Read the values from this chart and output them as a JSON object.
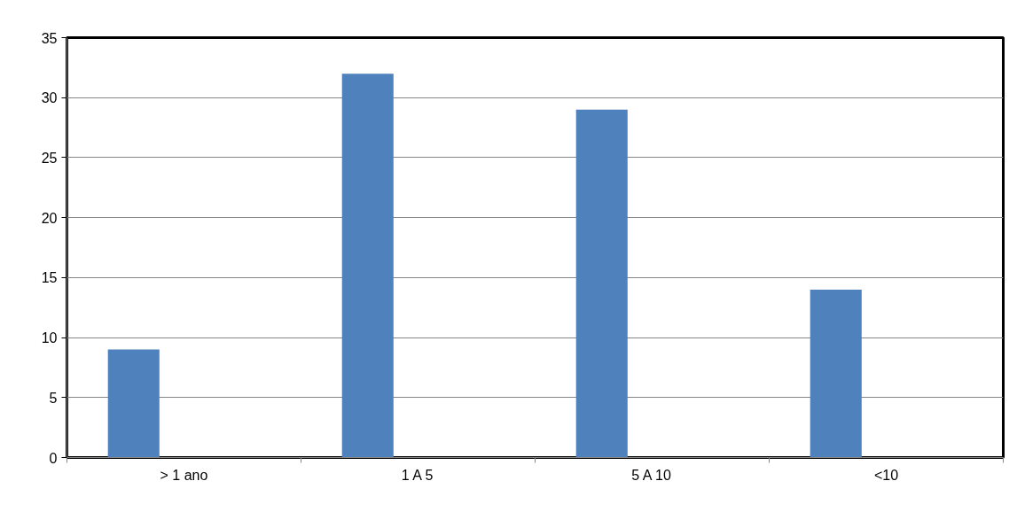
{
  "chart_data": {
    "type": "bar",
    "categories": [
      "> 1 ano",
      "1 A 5",
      "5 A 10",
      "<10"
    ],
    "series": [
      {
        "color": "#4f81bd",
        "values": [
          9,
          32,
          29,
          14
        ]
      }
    ],
    "ylim": [
      0,
      35
    ],
    "yticks": [
      0,
      5,
      10,
      15,
      20,
      25,
      30,
      35
    ],
    "grid": "y"
  }
}
